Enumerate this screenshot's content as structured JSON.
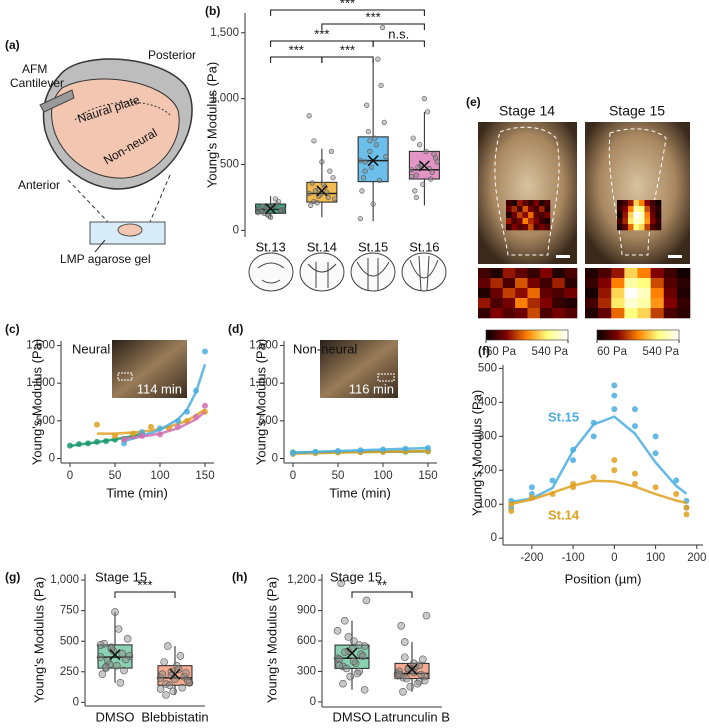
{
  "panel_labels": [
    "(a)",
    "(b)",
    "(c)",
    "(d)",
    "(e)",
    "(f)",
    "(g)",
    "(h)"
  ],
  "diagram": {
    "cantilever": [
      "AFM",
      "Cantilever"
    ],
    "posterior": "Posterior",
    "neural_plate": "Naural plate",
    "non_neural": "Non-neural",
    "anterior": "Anterior",
    "gel": "LMP agarose gel"
  },
  "chart_data": [
    {
      "type": "box",
      "y_label": "Young's Modulus (Pa)",
      "categories": [
        "St.13",
        "St.14",
        "St.15",
        "St.16"
      ],
      "colors": [
        "#2e9e78",
        "#f0b43c",
        "#5cb8e8",
        "#e08ac0"
      ],
      "stats": {
        "min": [
          90,
          100,
          70,
          190
        ],
        "q1": [
          130,
          215,
          370,
          390
        ],
        "median": [
          160,
          280,
          530,
          460
        ],
        "q3": [
          200,
          365,
          710,
          600
        ],
        "max": [
          260,
          620,
          1300,
          900
        ],
        "mean": [
          165,
          300,
          530,
          490
        ]
      },
      "points": [
        [
          160,
          140,
          120,
          180,
          200,
          150,
          170,
          130,
          110,
          190,
          220,
          160,
          145,
          175,
          100,
          240,
          155,
          135,
          185,
          165
        ],
        [
          280,
          220,
          310,
          350,
          250,
          400,
          190,
          300,
          270,
          330,
          450,
          240,
          360,
          210,
          520,
          290,
          600,
          870,
          680,
          260
        ],
        [
          530,
          450,
          600,
          700,
          380,
          820,
          300,
          950,
          480,
          650,
          1100,
          560,
          400,
          750,
          200,
          1300,
          1540,
          90,
          520,
          680
        ],
        [
          460,
          420,
          500,
          600,
          390,
          550,
          700,
          480,
          350,
          900,
          440,
          520,
          300,
          650,
          1000,
          470,
          580,
          410,
          250,
          490
        ]
      ],
      "ylim": [
        -50,
        1650
      ],
      "yticks": [
        0,
        500,
        {
          "value": 1000,
          "label": "1,000"
        },
        {
          "value": 1500,
          "label": "1,500"
        }
      ],
      "annotations": [
        {
          "text": "***",
          "pair": [
            0,
            3
          ]
        },
        {
          "text": "***",
          "pair": [
            1,
            3
          ]
        },
        {
          "text": "***",
          "pair": [
            0,
            2
          ]
        },
        {
          "text": "n.s.",
          "pair": [
            2,
            3
          ]
        },
        {
          "text": "***",
          "pair": [
            0,
            1
          ]
        },
        {
          "text": "***",
          "pair": [
            1,
            2
          ]
        }
      ]
    },
    {
      "type": "scatter-fit",
      "title": "Neural",
      "inset_label": "114 min",
      "x_label": "Time (min)",
      "y_label": "Young's Modulus (Pa)",
      "series": [
        {
          "color": "#1a9a6a",
          "x": [
            0,
            10,
            20,
            30,
            40,
            50,
            60,
            70,
            80
          ],
          "values": [
            170,
            190,
            200,
            220,
            230,
            250,
            260,
            290,
            330
          ],
          "fit": [
            165,
            185,
            200,
            215,
            235,
            255,
            275,
            300,
            330
          ]
        },
        {
          "color": "#e0a020",
          "x": [
            30,
            50,
            70,
            90,
            110,
            130,
            150
          ],
          "values": [
            450,
            300,
            330,
            420,
            400,
            500,
            620
          ],
          "fit": [
            330,
            330,
            345,
            370,
            420,
            500,
            650
          ]
        },
        {
          "color": "#4aaee0",
          "x": [
            60,
            80,
            100,
            120,
            130,
            140,
            150
          ],
          "values": [
            200,
            350,
            400,
            500,
            620,
            900,
            1420
          ],
          "fit": [
            230,
            300,
            380,
            520,
            650,
            880,
            1250
          ]
        },
        {
          "color": "#d070b0",
          "x": [
            60,
            80,
            100,
            120,
            140,
            150
          ],
          "values": [
            250,
            300,
            320,
            420,
            550,
            700
          ],
          "fit": [
            260,
            290,
            330,
            400,
            520,
            620
          ]
        }
      ],
      "xlim": [
        -10,
        160
      ],
      "xticks": [
        0,
        50,
        100,
        150
      ],
      "ylim": [
        -60,
        1560
      ],
      "yticks": [
        0,
        500,
        {
          "value": 1000,
          "label": "1,000"
        },
        {
          "value": 1500,
          "label": "1,500"
        }
      ]
    },
    {
      "type": "scatter-fit",
      "title": "Non-neural",
      "inset_label": "116 min",
      "x_label": "Time (min)",
      "y_label": "Young's Modulus (Pa)",
      "series": [
        {
          "color": "#1a9a6a",
          "x": [
            0,
            25,
            50,
            75,
            100,
            125,
            150
          ],
          "values": [
            80,
            80,
            85,
            85,
            90,
            90,
            95
          ],
          "fit": [
            80,
            81,
            84,
            86,
            89,
            91,
            94
          ]
        },
        {
          "color": "#e0a020",
          "x": [
            0,
            25,
            50,
            75,
            100,
            125,
            150
          ],
          "values": [
            60,
            70,
            80,
            85,
            90,
            95,
            100
          ],
          "fit": [
            62,
            70,
            78,
            85,
            90,
            95,
            100
          ]
        },
        {
          "color": "#4aaee0",
          "x": [
            0,
            25,
            50,
            75,
            100,
            125,
            150
          ],
          "values": [
            70,
            90,
            100,
            110,
            120,
            130,
            140
          ],
          "fit": [
            75,
            88,
            100,
            110,
            120,
            130,
            140
          ]
        }
      ],
      "xlim": [
        -10,
        160
      ],
      "xticks": [
        0,
        50,
        100,
        150
      ],
      "ylim": [
        -60,
        1560
      ],
      "yticks": [
        0,
        500,
        {
          "value": 1000,
          "label": "1,000"
        },
        {
          "value": 1500,
          "label": "1,500"
        }
      ]
    },
    {
      "type": "heatmap",
      "title": "Stage 14",
      "zlim": [
        60,
        540
      ],
      "zticks": [
        {
          "value": 60,
          "label": "60 Pa"
        },
        {
          "value": 540,
          "label": "540 Pa"
        }
      ],
      "values": [
        [
          120,
          90,
          200,
          150,
          110,
          180,
          90,
          130
        ],
        [
          150,
          220,
          130,
          260,
          170,
          120,
          210,
          100
        ],
        [
          90,
          160,
          240,
          190,
          280,
          150,
          130,
          170
        ],
        [
          200,
          130,
          170,
          300,
          220,
          180,
          110,
          90
        ],
        [
          110,
          180,
          140,
          160,
          250,
          130,
          170,
          140
        ]
      ]
    },
    {
      "type": "heatmap",
      "title": "Stage 15",
      "zlim": [
        60,
        540
      ],
      "zticks": [
        {
          "value": 60,
          "label": "60 Pa"
        },
        {
          "value": 540,
          "label": "540 Pa"
        }
      ],
      "values": [
        [
          90,
          130,
          200,
          380,
          300,
          180,
          120,
          80
        ],
        [
          110,
          180,
          300,
          460,
          420,
          250,
          140,
          100
        ],
        [
          80,
          200,
          380,
          540,
          480,
          300,
          160,
          90
        ],
        [
          120,
          220,
          400,
          500,
          460,
          320,
          180,
          110
        ],
        [
          90,
          150,
          280,
          420,
          380,
          240,
          130,
          100
        ]
      ]
    },
    {
      "type": "scatter-fit",
      "x_label": "Position (µm)",
      "y_label": "Young's Modulus (Pa)",
      "series": [
        {
          "name": "St.15",
          "color": "#4aaee0",
          "x": [
            -250,
            -250,
            -200,
            -200,
            -150,
            -100,
            -100,
            -50,
            -50,
            0,
            0,
            0,
            50,
            50,
            100,
            100,
            150,
            175,
            175
          ],
          "values": [
            110,
            90,
            130,
            150,
            170,
            230,
            260,
            300,
            340,
            380,
            420,
            450,
            330,
            380,
            250,
            300,
            170,
            110,
            90
          ],
          "fit": [
            107,
            107,
            117,
            117,
            148,
            258,
            258,
            335,
            335,
            358,
            358,
            358,
            308,
            308,
            223,
            223,
            154,
            131,
            131
          ]
        },
        {
          "name": "St.14",
          "color": "#e0a020",
          "x": [
            -250,
            -250,
            -200,
            -150,
            -100,
            -100,
            -50,
            0,
            0,
            50,
            50,
            100,
            150,
            175,
            175
          ],
          "values": [
            80,
            100,
            120,
            130,
            150,
            160,
            180,
            200,
            230,
            160,
            190,
            150,
            130,
            90,
            70
          ],
          "fit": [
            101,
            101,
            114,
            134,
            155,
            155,
            169,
            167,
            167,
            152,
            152,
            130,
            111,
            104,
            104
          ]
        }
      ],
      "xlim": [
        -270,
        215
      ],
      "xticks": [
        -200,
        -100,
        0,
        100,
        200
      ],
      "ylim": [
        -20,
        510
      ],
      "yticks": [
        0,
        100,
        200,
        300,
        400,
        500
      ]
    },
    {
      "type": "box",
      "title": "Stage 15",
      "y_label": "Young's Modulus (Pa)",
      "categories": [
        "DMSO",
        "Blebbistatin"
      ],
      "colors": [
        "#7dcdab",
        "#f4a283"
      ],
      "stats": {
        "min": [
          160,
          60
        ],
        "q1": [
          280,
          140
        ],
        "median": [
          370,
          200
        ],
        "q3": [
          470,
          300
        ],
        "max": [
          740,
          460
        ],
        "mean": [
          390,
          230
        ]
      },
      "points": [
        [
          370,
          280,
          450,
          300,
          400,
          520,
          230,
          340,
          420,
          600,
          260,
          380,
          480,
          310,
          740,
          160,
          350,
          470,
          290,
          440
        ],
        [
          200,
          150,
          250,
          300,
          120,
          180,
          230,
          460,
          90,
          270,
          210,
          160,
          330,
          140,
          190,
          380,
          240,
          110,
          60,
          220
        ]
      ],
      "ylim": [
        -30,
        1050
      ],
      "yticks": [
        0,
        250,
        500,
        750,
        {
          "value": 1000,
          "label": "1,000"
        }
      ],
      "annotations": [
        {
          "text": "***",
          "pair": [
            0,
            1
          ]
        }
      ]
    },
    {
      "type": "box",
      "title": "Stage 15",
      "y_label": "Young's Modulus (Pa)",
      "categories": [
        "DMSO",
        "Latrunculin B"
      ],
      "colors": [
        "#7dcdab",
        "#f4a283"
      ],
      "stats": {
        "min": [
          120,
          100
        ],
        "q1": [
          330,
          230
        ],
        "median": [
          430,
          280
        ],
        "q3": [
          560,
          380
        ],
        "max": [
          800,
          590
        ],
        "mean": [
          480,
          320
        ]
      },
      "points": [
        [
          430,
          350,
          500,
          600,
          300,
          550,
          420,
          800,
          250,
          380,
          470,
          1000,
          1170,
          330,
          520,
          280,
          450,
          700,
          180,
          640,
          400,
          560,
          120,
          360,
          490
        ],
        [
          280,
          240,
          320,
          380,
          200,
          250,
          300,
          590,
          150,
          350,
          270,
          850,
          750,
          230,
          310,
          180,
          420,
          260,
          100,
          330,
          290,
          360,
          210,
          270,
          440
        ]
      ],
      "ylim": [
        -50,
        1260
      ],
      "yticks": [
        0,
        300,
        600,
        900,
        {
          "value": 1200,
          "label": "1,200"
        }
      ],
      "annotations": [
        {
          "text": "**",
          "pair": [
            0,
            1
          ]
        }
      ]
    }
  ]
}
